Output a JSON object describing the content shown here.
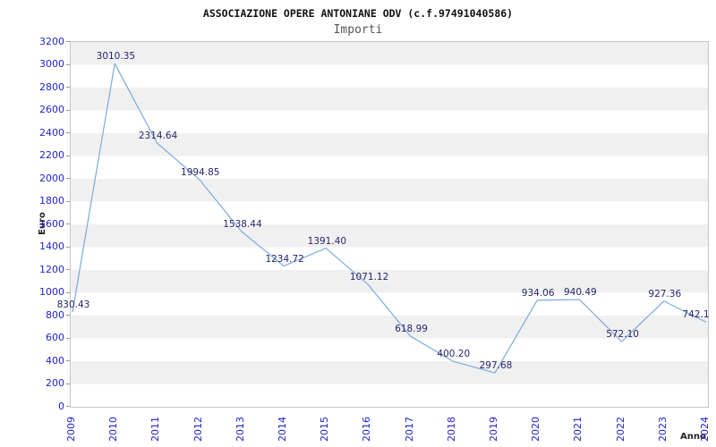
{
  "chart": {
    "title": "ASSOCIAZIONE OPERE ANTONIANE ODV (c.f.97491040586)",
    "subtitle": "Importi",
    "ylabel": "Euro",
    "xlabel": "Anno"
  },
  "chart_data": {
    "type": "line",
    "title": "ASSOCIAZIONE OPERE ANTONIANE ODV (c.f.97491040586)",
    "subtitle": "Importi",
    "xlabel": "Anno",
    "ylabel": "Euro",
    "x": [
      2009,
      2010,
      2011,
      2012,
      2013,
      2014,
      2015,
      2016,
      2017,
      2018,
      2019,
      2020,
      2021,
      2022,
      2023,
      2024
    ],
    "series": [
      {
        "name": "Importi",
        "values": [
          830.43,
          3010.35,
          2314.64,
          1994.85,
          1538.44,
          1234.72,
          1391.4,
          1071.12,
          618.99,
          400.2,
          297.68,
          934.06,
          940.49,
          572.1,
          927.36,
          742.1
        ]
      }
    ],
    "point_labels": [
      "830.43",
      "3010.35",
      "2314.64",
      "1994.85",
      "1538.44",
      "1234.72",
      "1391.40",
      "1071.12",
      "618.99",
      "400.20",
      "297.68",
      "934.06",
      "940.49",
      "572.10",
      "927.36",
      "742.1"
    ],
    "ylim": [
      0,
      3200
    ],
    "yticks": [
      0,
      200,
      400,
      600,
      800,
      1000,
      1200,
      1400,
      1600,
      1800,
      2000,
      2200,
      2400,
      2600,
      2800,
      3000,
      3200
    ],
    "grid": "alternating-bands",
    "legend": "none",
    "colors": {
      "line": "#7aabe0",
      "tick_label": "#2222cc",
      "point_label": "#26266e",
      "band": "#f0f0f0",
      "plot_border": "#c6c6c6",
      "subtitle": "#555555",
      "title": "#111111"
    }
  }
}
